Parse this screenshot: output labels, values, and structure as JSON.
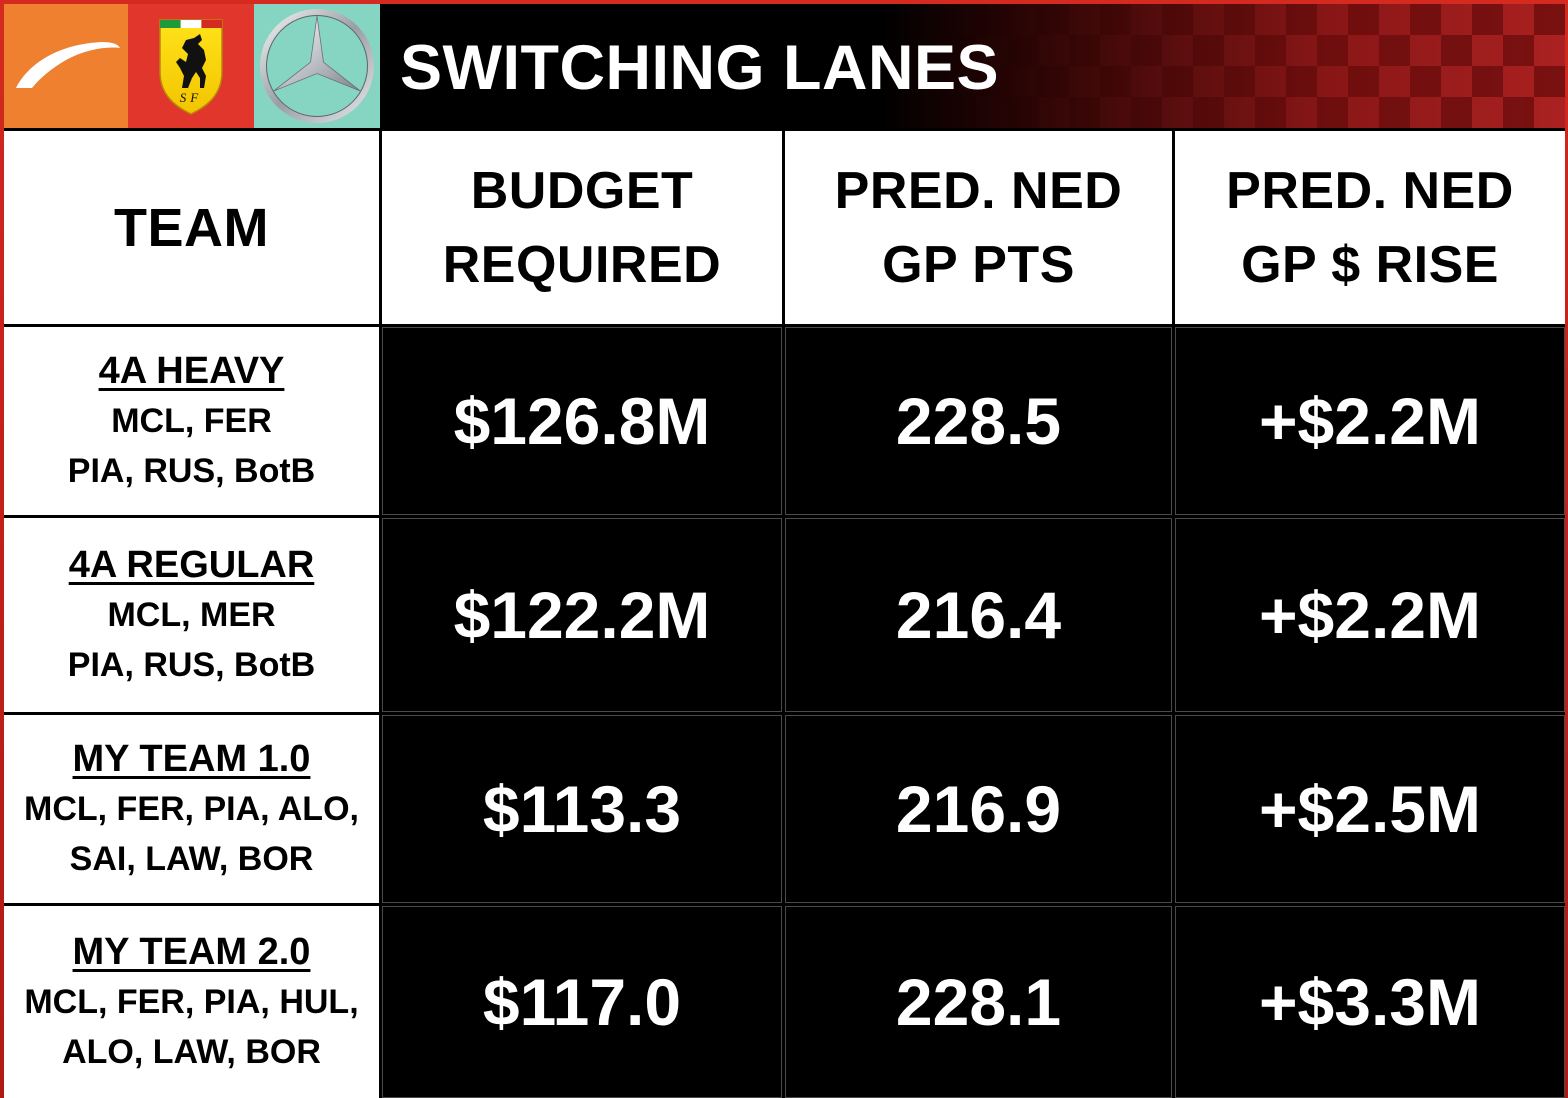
{
  "header": {
    "title": "SWITCHING LANES",
    "logos": [
      "mclaren-logo-icon",
      "ferrari-logo-icon",
      "mercedes-logo-icon"
    ],
    "ferrari_logo_letters": "SF"
  },
  "table": {
    "columns": [
      {
        "lines": [
          "TEAM"
        ]
      },
      {
        "lines": [
          "BUDGET",
          "REQUIRED"
        ]
      },
      {
        "lines": [
          "PRED. NED",
          "GP PTS"
        ]
      },
      {
        "lines": [
          "PRED. NED",
          "GP $ RISE"
        ]
      }
    ],
    "rows": [
      {
        "title": "4A HEAVY",
        "lines": [
          "MCL, FER",
          "PIA, RUS, BotB"
        ],
        "budget": "$126.8M",
        "pts": "228.5",
        "rise": "+$2.2M"
      },
      {
        "title": "4A REGULAR",
        "lines": [
          "MCL, MER",
          "PIA, RUS, BotB"
        ],
        "budget": "$122.2M",
        "pts": "216.4",
        "rise": "+$2.2M"
      },
      {
        "title": "MY TEAM 1.0",
        "lines": [
          "MCL, FER, PIA, ALO,",
          "SAI, LAW, BOR"
        ],
        "budget": "$113.3",
        "pts": "216.9",
        "rise": "+$2.5M"
      },
      {
        "title": "MY TEAM 2.0",
        "lines": [
          "MCL, FER, PIA, HUL,",
          "ALO, LAW, BOR"
        ],
        "budget": "$117.0",
        "pts": "228.1",
        "rise": "+$3.3M"
      }
    ]
  },
  "colors": {
    "mclaren_orange": "#ef8030",
    "ferrari_red": "#e1362c",
    "mercedes_teal": "#86d5c3",
    "frame_red": "#c4201a",
    "value_cell": "#000000",
    "label_cell": "#ffffff"
  }
}
